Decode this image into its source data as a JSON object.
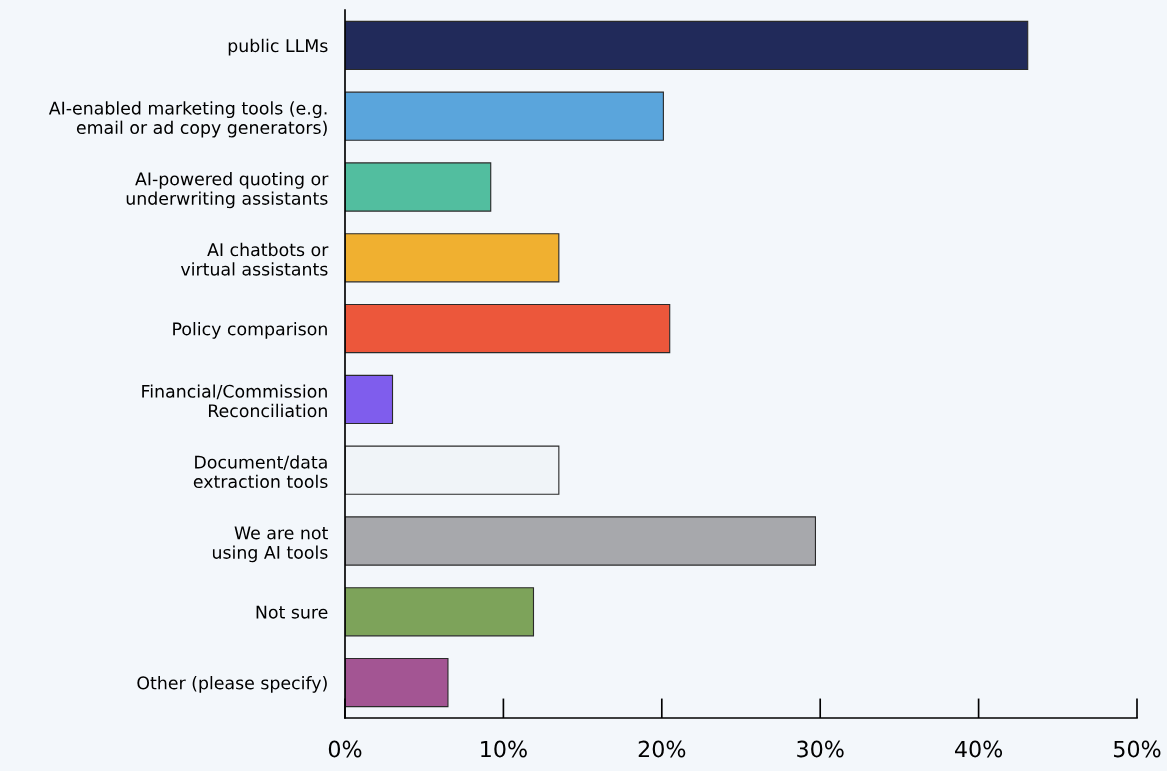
{
  "chart_data": {
    "type": "bar",
    "orientation": "horizontal",
    "categories": [
      "public LLMs",
      "AI-enabled marketing tools (e.g.\nemail or ad copy generators)",
      "AI-powered quoting or\nunderwriting assistants",
      "AI chatbots or\nvirtual assistants",
      "Policy comparison",
      "Financial/Commission\nReconciliation",
      "Document/data\nextraction tools",
      "We are not\nusing AI tools",
      "Not sure",
      "Other (please specify)"
    ],
    "values": [
      43.1,
      20.1,
      9.2,
      13.5,
      20.5,
      3.0,
      13.5,
      29.7,
      11.9,
      6.5
    ],
    "colors": [
      "#212a5a",
      "#5aa5dc",
      "#52be9f",
      "#f0b030",
      "#ec573b",
      "#7f5ded",
      "#f0f4f8",
      "#a7a8ac",
      "#7da35a",
      "#a35593"
    ],
    "xlim": [
      0,
      50
    ],
    "xticks": [
      {
        "value": 0,
        "label": "0%"
      },
      {
        "value": 10,
        "label": "10%"
      },
      {
        "value": 20,
        "label": "20%"
      },
      {
        "value": 30,
        "label": "30%"
      },
      {
        "value": 40,
        "label": "40%"
      },
      {
        "value": 50,
        "label": "50%"
      }
    ],
    "grid": false
  }
}
